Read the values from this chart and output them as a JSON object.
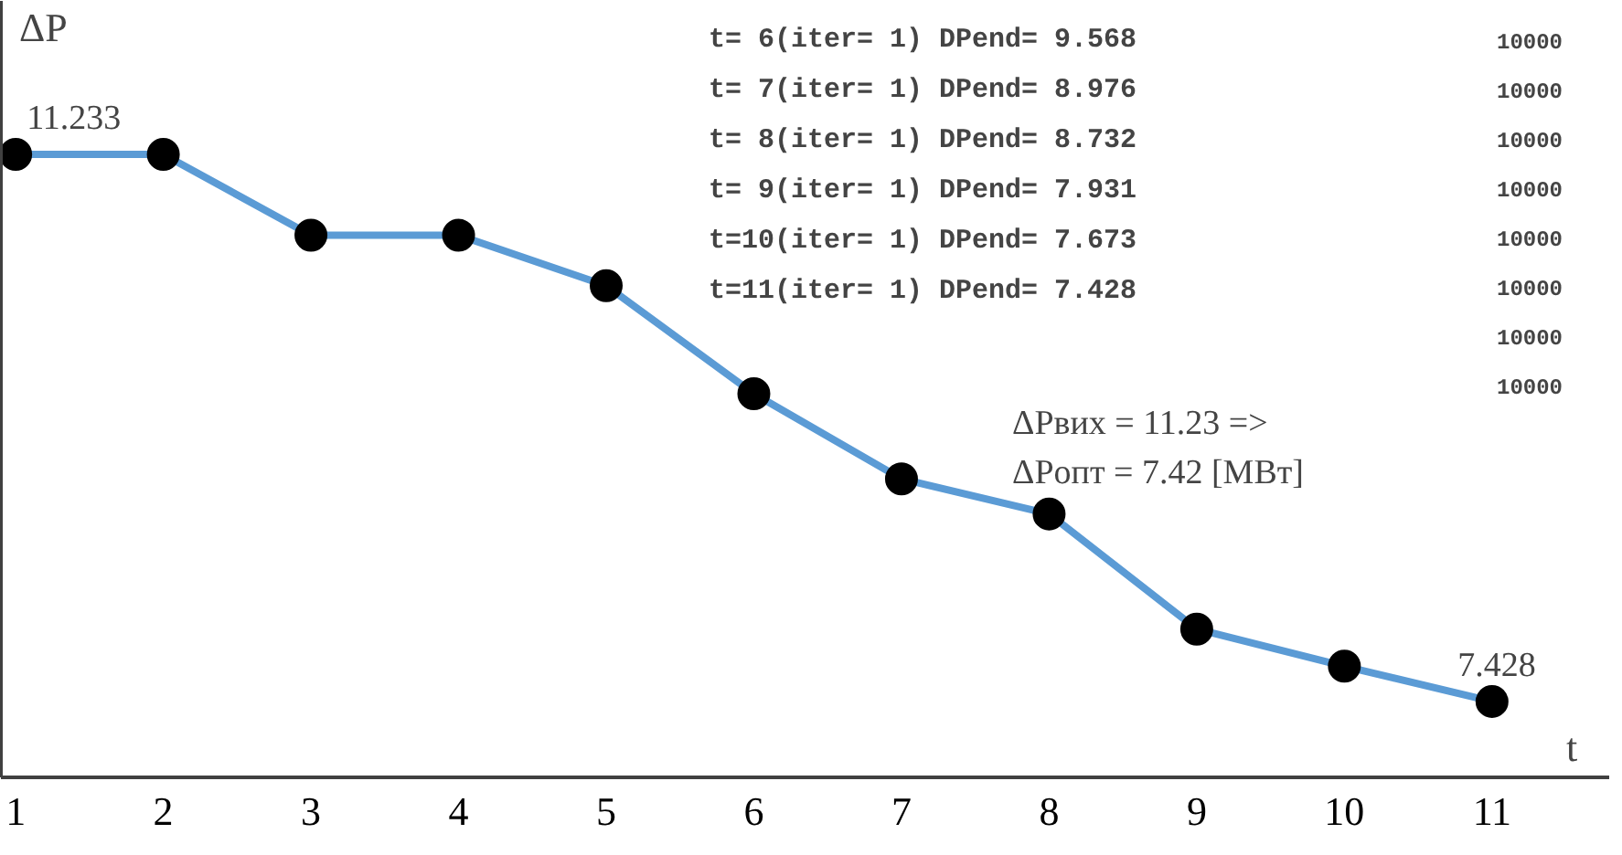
{
  "chart_data": {
    "type": "line",
    "xlabel": "t",
    "ylabel": "ΔP",
    "x": [
      1,
      2,
      3,
      4,
      5,
      6,
      7,
      8,
      9,
      10,
      11
    ],
    "series": [
      {
        "color": "#5b9bd5",
        "values": [
          11.233,
          11.233,
          10.67,
          10.67,
          10.32,
          9.568,
          8.976,
          8.732,
          7.931,
          7.673,
          7.428
        ],
        "value_labels": [
          "11.233",
          null,
          null,
          null,
          null,
          null,
          null,
          null,
          null,
          null,
          "7.428"
        ]
      }
    ],
    "xlim": [
      0.9,
      11.8
    ],
    "ylim": [
      6.9,
      12.3
    ],
    "xticks": [
      1,
      2,
      3,
      4,
      5,
      6,
      7,
      8,
      9,
      10,
      11
    ],
    "tick_labels": "x",
    "grid": false,
    "marker": "circle",
    "line_style": "solid",
    "annotations": [
      "t= 6(iter= 1)  DPend=  9.568",
      "t= 7(iter= 1)  DPend=  8.976",
      "t= 8(iter= 1)  DPend=  8.732",
      "t= 9(iter= 1)  DPend=  7.931",
      "t=10(iter= 1)  DPend=  7.673",
      "t=11(iter= 1)  DPend=  7.428",
      "ΔPвих = 11.23 =>",
      "ΔPопт = 7.42 [МВт]",
      "10000",
      "10000",
      "10000",
      "10000",
      "10000",
      "10000",
      "10000",
      "10000"
    ]
  }
}
